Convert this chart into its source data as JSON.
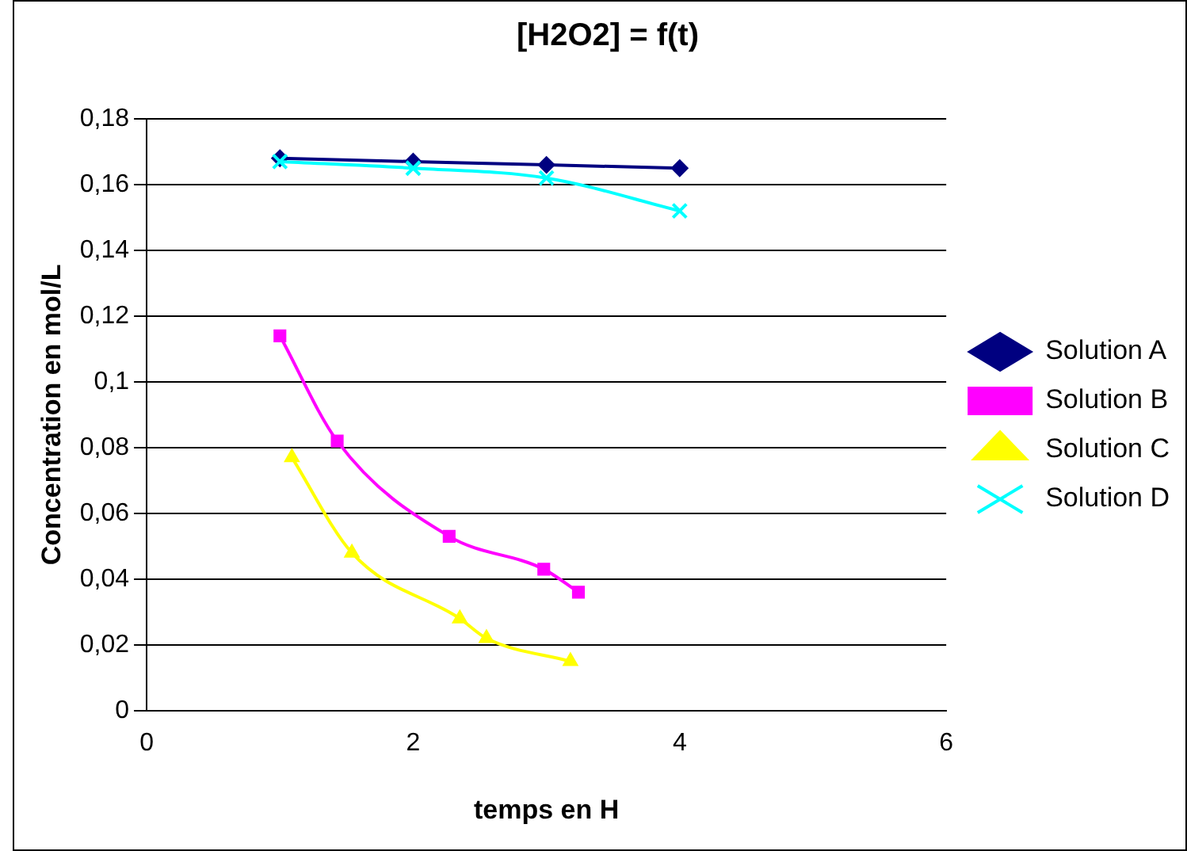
{
  "chart_data": {
    "type": "line",
    "title": "[H2O2] = f(t)",
    "xlabel": "temps en H",
    "ylabel": "Concentration en mol/L",
    "xlim": [
      0,
      6
    ],
    "xticks": [
      0,
      2,
      4,
      6
    ],
    "ylim": [
      0,
      0.18
    ],
    "yticks": [
      0,
      {
        "value": 0.02,
        "label": "0,02"
      },
      {
        "value": 0.04,
        "label": "0,04"
      },
      {
        "value": 0.06,
        "label": "0,06"
      },
      {
        "value": 0.08,
        "label": "0,08"
      },
      {
        "value": 0.1,
        "label": "0,1"
      },
      {
        "value": 0.12,
        "label": "0,12"
      },
      {
        "value": 0.14,
        "label": "0,14"
      },
      {
        "value": 0.16,
        "label": "0,16"
      },
      {
        "value": 0.18,
        "label": "0,18"
      }
    ],
    "grid": "y",
    "legend": "right",
    "line_style": "solid",
    "series": [
      {
        "name": "Solution A",
        "color": "#000080",
        "marker": "diamond",
        "x": [
          1,
          2,
          3,
          4
        ],
        "values": [
          0.168,
          0.167,
          0.166,
          0.165
        ]
      },
      {
        "name": "Solution B",
        "color": "#ff00ff",
        "marker": "square",
        "x": [
          1,
          1.43,
          2.27,
          2.98,
          3.24
        ],
        "values": [
          0.114,
          0.082,
          0.053,
          0.043,
          0.036
        ]
      },
      {
        "name": "Solution C",
        "color": "#ffff00",
        "marker": "triangle",
        "x": [
          1.09,
          1.54,
          2.35,
          2.55,
          3.18
        ],
        "values": [
          0.077,
          0.048,
          0.028,
          0.022,
          0.015
        ]
      },
      {
        "name": "Solution D",
        "color": "#00ffff",
        "marker": "cross",
        "x": [
          1,
          2,
          3,
          4
        ],
        "values": [
          0.167,
          0.165,
          0.162,
          0.152
        ]
      }
    ]
  }
}
